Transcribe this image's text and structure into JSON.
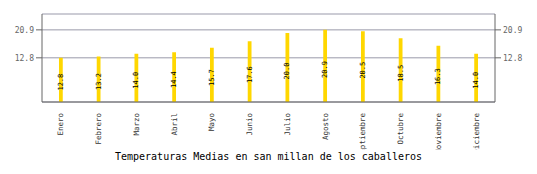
{
  "chart_data": {
    "type": "bar",
    "title": "Temperaturas Medias en san millan de los caballeros",
    "categories": [
      "Enero",
      "Febrero",
      "Marzo",
      "Abril",
      "Mayo",
      "Junio",
      "Julio",
      "Agosto",
      "Septiembre",
      "Octubre",
      "Noviembre",
      "Diciembre"
    ],
    "values": [
      12.8,
      13.2,
      14.0,
      14.4,
      15.7,
      17.6,
      20.0,
      20.9,
      20.5,
      18.5,
      16.3,
      14.0
    ],
    "value_labels": [
      "12.8",
      "13.2",
      "14.0",
      "14.4",
      "15.7",
      "17.6",
      "20.0",
      "20.9",
      "20.5",
      "18.5",
      "16.3",
      "14.0"
    ],
    "data_labels": true,
    "color": "#FFD700",
    "ylim": [
      0,
      25.498
    ],
    "yticks": [
      12.8,
      20.9
    ],
    "y2lim": [
      0,
      25.498
    ],
    "y2ticks": [
      12.8,
      20.9
    ],
    "grid": true
  }
}
